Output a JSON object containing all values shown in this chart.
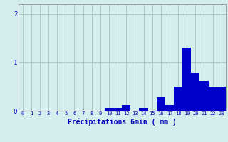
{
  "xlabel": "Précipitations 6min ( mm )",
  "background_color": "#d4eeee",
  "bar_color": "#0000cc",
  "grid_color": "#aacaca",
  "ylim": [
    0,
    2.2
  ],
  "yticks": [
    0,
    1,
    2
  ],
  "hours": [
    0,
    1,
    2,
    3,
    4,
    5,
    6,
    7,
    8,
    9,
    10,
    11,
    12,
    13,
    14,
    15,
    16,
    17,
    18,
    19,
    20,
    21,
    22,
    23
  ],
  "values": [
    0,
    0,
    0,
    0,
    0,
    0,
    0,
    0,
    0,
    0,
    0.06,
    0.06,
    0.12,
    0,
    0.06,
    0,
    0.28,
    0.12,
    0.5,
    1.3,
    0.78,
    0.62,
    0.5,
    0.5
  ]
}
